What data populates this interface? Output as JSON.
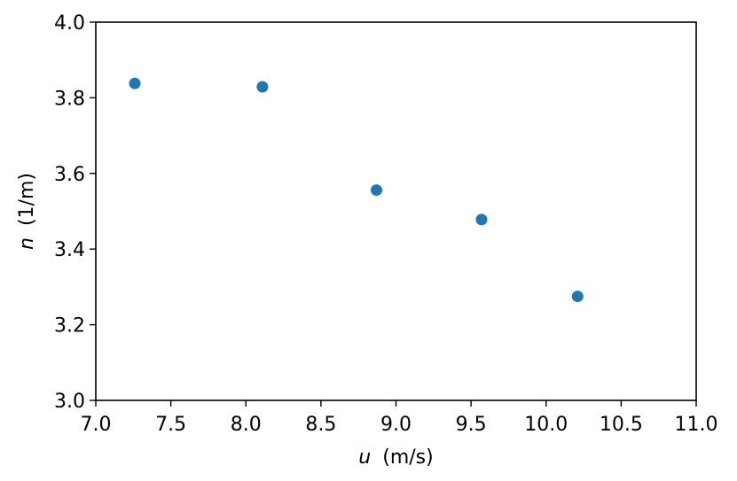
{
  "chart_data": {
    "type": "scatter",
    "xlabel_var": "u",
    "xlabel_unit": "(m/s)",
    "ylabel_var": "n",
    "ylabel_unit": "(1/m)",
    "xlim": [
      7.0,
      11.0
    ],
    "ylim": [
      3.0,
      4.0
    ],
    "xticks": [
      "7.0",
      "7.5",
      "8.0",
      "8.5",
      "9.0",
      "9.5",
      "10.0",
      "10.5",
      "11.0"
    ],
    "yticks": [
      "3.0",
      "3.2",
      "3.4",
      "3.6",
      "3.8",
      "4.0"
    ],
    "grid": false,
    "series": [
      {
        "color": "#1f77b4",
        "x": [
          7.26,
          8.11,
          8.87,
          9.57,
          10.21
        ],
        "y": [
          3.838,
          3.829,
          3.556,
          3.478,
          3.275
        ]
      }
    ]
  }
}
